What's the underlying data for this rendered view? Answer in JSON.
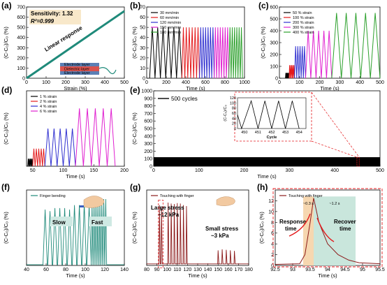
{
  "figure": {
    "panels": [
      "(a)",
      "(b)",
      "(c)",
      "(d)",
      "(e)",
      "(f)",
      "(g)",
      "(h)"
    ]
  },
  "chart_data": [
    {
      "id": "a",
      "type": "line",
      "xlabel": "Strain (%)",
      "ylabel": "(C-C₀)/C₀ (%)",
      "xlim": [
        0,
        500
      ],
      "ylim": [
        0,
        700
      ],
      "xticks": [
        0,
        100,
        200,
        300,
        400,
        500
      ],
      "yticks": [
        0,
        100,
        200,
        300,
        400,
        500,
        600,
        700
      ],
      "annotations": [
        "Sensitivity: 1.32",
        "R²=0.999",
        "Linear response",
        "Electrode layer",
        "Dielectric layer",
        "Electrode layer"
      ],
      "series": [
        {
          "color": "#1f8a7a",
          "x": [
            0,
            100,
            200,
            300,
            400,
            500
          ],
          "y": [
            0,
            132,
            264,
            396,
            528,
            660
          ]
        }
      ],
      "colors": {
        "line": "#1f8a7a",
        "text": "#e07b1a",
        "box": "#f5deb3"
      }
    },
    {
      "id": "b",
      "type": "line",
      "xlabel": "Time (s)",
      "ylabel": "(C-C₀)/C₀ (%)",
      "xlim": [
        0,
        1000
      ],
      "ylim": [
        0,
        70
      ],
      "xticks": [
        0,
        200,
        400,
        600,
        800,
        1000
      ],
      "yticks": [
        0,
        10,
        20,
        30,
        40,
        50,
        60,
        70
      ],
      "series": [
        {
          "name": "30 mm/min",
          "color": "#000000",
          "x_range": [
            30,
            360
          ],
          "cycles": 6,
          "peak": 50
        },
        {
          "name": "60 mm/min",
          "color": "#e41a1c",
          "x_range": [
            360,
            540
          ],
          "cycles": 6,
          "peak": 50
        },
        {
          "name": "120 mm/min",
          "color": "#3030d0",
          "x_range": [
            540,
            690
          ],
          "cycles": 6,
          "peak": 50
        },
        {
          "name": "150 mm/min",
          "color": "#e020d0",
          "x_range": [
            690,
            840
          ],
          "cycles": 6,
          "peak": 50
        },
        {
          "name": "180 mm/min",
          "color": "#2ca02c",
          "x_range": [
            840,
            980
          ],
          "cycles": 6,
          "peak": 50
        }
      ]
    },
    {
      "id": "c",
      "type": "line",
      "xlabel": "Time (s)",
      "ylabel": "(C-C₀)/C₀ (%)",
      "xlim": [
        0,
        500
      ],
      "ylim": [
        0,
        600
      ],
      "xticks": [
        0,
        100,
        200,
        300,
        400,
        500
      ],
      "yticks": [
        0,
        100,
        200,
        300,
        400,
        500,
        600
      ],
      "series": [
        {
          "name": "50 % strain",
          "color": "#000000",
          "x_range": [
            30,
            48
          ],
          "cycles": 5,
          "peak": 45
        },
        {
          "name": "100 % strain",
          "color": "#e41a1c",
          "x_range": [
            48,
            75
          ],
          "cycles": 5,
          "peak": 110
        },
        {
          "name": "200 % strain",
          "color": "#3030d0",
          "x_range": [
            75,
            130
          ],
          "cycles": 5,
          "peak": 270
        },
        {
          "name": "300 % strain",
          "color": "#e020d0",
          "x_range": [
            130,
            260
          ],
          "cycles": 5,
          "peak": 400
        },
        {
          "name": "400 % strain",
          "color": "#2ca02c",
          "x_range": [
            260,
            500
          ],
          "cycles": 5,
          "peak": 550
        }
      ]
    },
    {
      "id": "d",
      "type": "line",
      "xlabel": "Time (s)",
      "ylabel": "(C-C₀)/C₀ (%)",
      "xlim": [
        40,
        200
      ],
      "ylim": [
        0,
        15
      ],
      "xticks": [
        50,
        100,
        150,
        200
      ],
      "series": [
        {
          "name": "1 % strain",
          "color": "#000000",
          "x_range": [
            42,
            50
          ],
          "cycles": 5,
          "peak": 1.5
        },
        {
          "name": "2 % strain",
          "color": "#e41a1c",
          "x_range": [
            50,
            70
          ],
          "cycles": 5,
          "peak": 3.5
        },
        {
          "name": "4 % strain",
          "color": "#3030d0",
          "x_range": [
            70,
            120
          ],
          "cycles": 5,
          "peak": 7.5
        },
        {
          "name": "6 % strain",
          "color": "#e020d0",
          "x_range": [
            120,
            185
          ],
          "cycles": 5,
          "peak": 11.5
        }
      ]
    },
    {
      "id": "e",
      "type": "area",
      "xlabel": "Time (s)",
      "ylabel": "(C-C₀)/C₀ (%)",
      "xlim": [
        0,
        500
      ],
      "ylim": [
        0,
        1000
      ],
      "xticks": [
        0,
        100,
        200,
        300,
        400,
        500
      ],
      "yticks": [
        0,
        100,
        200,
        300,
        400,
        500,
        600,
        700,
        800,
        900,
        1000
      ],
      "series": [
        {
          "name": "500 cycles",
          "color": "#000000",
          "x_range": [
            0,
            500
          ],
          "peak": 120
        }
      ],
      "inset": {
        "xlabel": "Cycle",
        "ylabel": "(C-C₀)/C₀",
        "xlim": [
          449.5,
          454.5
        ],
        "ylim": [
          0,
          120
        ],
        "xticks": [
          450,
          451,
          452,
          453,
          454
        ],
        "yticks": [
          0,
          20,
          40,
          60,
          80,
          100,
          120
        ],
        "peaks_at": [
          450.5,
          451.5,
          452.5,
          453.5
        ],
        "peak": 108
      },
      "colors": {
        "zoom": "#e41a1c"
      }
    },
    {
      "id": "f",
      "type": "line",
      "xlabel": "Time (s)",
      "ylabel": "(C-C₀)/C₀ (%)",
      "xlim": [
        40,
        140
      ],
      "ylim": [
        0,
        50
      ],
      "xticks": [
        40,
        60,
        80,
        100,
        120,
        140
      ],
      "annotations": [
        "Slow",
        "Fast"
      ],
      "series": [
        {
          "name": "Finger bending",
          "color": "#1f8a7a",
          "peaks_x": [
            59,
            64,
            69,
            74,
            79,
            84,
            89,
            94,
            99,
            104,
            107,
            109,
            111,
            113,
            115,
            117,
            119,
            121
          ],
          "peaks_y": [
            37,
            36,
            38,
            38,
            38,
            37,
            40,
            40,
            41,
            40,
            42,
            42,
            43,
            43,
            44,
            44,
            44,
            44
          ]
        }
      ],
      "colors": {
        "text": "#1f8a7a",
        "box": "#cfe9e3"
      }
    },
    {
      "id": "g",
      "type": "line",
      "xlabel": "Time (s)",
      "ylabel": "(C-C₀)/C₀ (%)",
      "xlim": [
        80,
        180
      ],
      "ylim": [
        0,
        15
      ],
      "xticks": [
        80,
        90,
        100,
        110,
        120,
        130,
        140,
        150,
        160,
        170,
        180
      ],
      "annotations": [
        "Large stress",
        "~12 kPa",
        "Small stress",
        "~3 kPa"
      ],
      "series": [
        {
          "name": "Touching with finger",
          "color": "#8b1a1a",
          "peaks_x": [
            92.5,
            94.5,
            101,
            104,
            107,
            110,
            113,
            116,
            119,
            150,
            154,
            158,
            162,
            166
          ],
          "peaks_y": [
            12,
            11.5,
            12.5,
            12.3,
            12.2,
            12.4,
            12.3,
            12,
            11.8,
            3,
            3.2,
            3.1,
            3,
            2.9
          ]
        }
      ]
    },
    {
      "id": "h",
      "type": "line",
      "xlabel": "Time (s)",
      "ylabel": "(C-C₀)/C₀ (%)",
      "xlim": [
        92.5,
        95.5
      ],
      "ylim": [
        0,
        14
      ],
      "xticks": [
        92.5,
        93.0,
        93.5,
        94.0,
        94.5,
        95.0,
        95.5
      ],
      "yticks": [
        0,
        2,
        4,
        6,
        8,
        10,
        12
      ],
      "annotations": [
        "~0.3 s",
        "~1.2 s",
        "Response time",
        "Recover time"
      ],
      "series": [
        {
          "name": "Touching with finger",
          "color": "#8b1a1a",
          "x": [
            92.5,
            93.2,
            93.35,
            93.5,
            93.6,
            93.75,
            94.0,
            94.3,
            94.6,
            94.9,
            95.5
          ],
          "y": [
            0.2,
            0.3,
            2,
            8,
            12.5,
            8,
            4,
            2,
            1,
            0.5,
            0.3
          ]
        }
      ],
      "colors": {
        "response": "#f6d7b0",
        "recover": "#c9e6dc",
        "arrow": "#e41a1c"
      }
    }
  ]
}
